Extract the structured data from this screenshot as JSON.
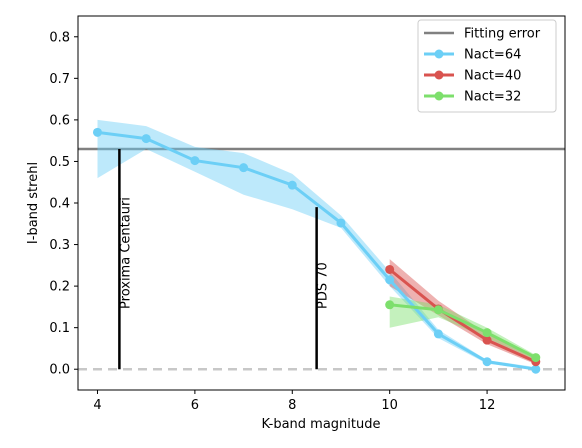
{
  "chart_data": {
    "type": "line",
    "xlabel": "K-band magnitude",
    "ylabel": "I-band strehl",
    "xlim": [
      3.6,
      13.6
    ],
    "ylim": [
      -0.05,
      0.85
    ],
    "xticks": [
      4,
      6,
      8,
      10,
      12
    ],
    "yticks": [
      0.0,
      0.1,
      0.2,
      0.3,
      0.4,
      0.5,
      0.6,
      0.7,
      0.8
    ],
    "grid": false,
    "legend_position": "top-right",
    "reference_lines": [
      {
        "name": "Fitting error",
        "y": 0.53,
        "color": "#808080",
        "style": "solid"
      },
      {
        "name": "",
        "y": 0.0,
        "color": "#c8c8c8",
        "style": "dashed"
      }
    ],
    "series": [
      {
        "name": "Nact=64",
        "color": "#6ccff6",
        "x": [
          4,
          5,
          6,
          7,
          8,
          9,
          10,
          11,
          12,
          13
        ],
        "values": [
          0.57,
          0.555,
          0.502,
          0.485,
          0.443,
          0.352,
          0.215,
          0.085,
          0.018,
          0.0
        ],
        "band_low": [
          0.46,
          0.53,
          0.475,
          0.42,
          0.385,
          0.34,
          0.2,
          0.075,
          0.013,
          0.0
        ],
        "band_high": [
          0.6,
          0.585,
          0.535,
          0.52,
          0.47,
          0.37,
          0.235,
          0.095,
          0.022,
          0.005
        ]
      },
      {
        "name": "Nact=40",
        "color": "#d9534f",
        "x": [
          10,
          11,
          12,
          13
        ],
        "values": [
          0.24,
          0.145,
          0.07,
          0.018
        ],
        "band_low": [
          0.2,
          0.13,
          0.06,
          0.012
        ],
        "band_high": [
          0.265,
          0.165,
          0.085,
          0.024
        ]
      },
      {
        "name": "Nact=32",
        "color": "#7ddf6c",
        "x": [
          10,
          11,
          12,
          13
        ],
        "values": [
          0.155,
          0.143,
          0.088,
          0.028
        ],
        "band_low": [
          0.1,
          0.125,
          0.075,
          0.022
        ],
        "band_high": [
          0.175,
          0.155,
          0.1,
          0.034
        ]
      }
    ],
    "annotations": [
      {
        "text": "Proxima Centauri",
        "x": 4.45,
        "y_bottom": 0.0,
        "y_top": 0.53
      },
      {
        "text": "PDS 70",
        "x": 8.5,
        "y_bottom": 0.0,
        "y_top": 0.39
      }
    ]
  }
}
